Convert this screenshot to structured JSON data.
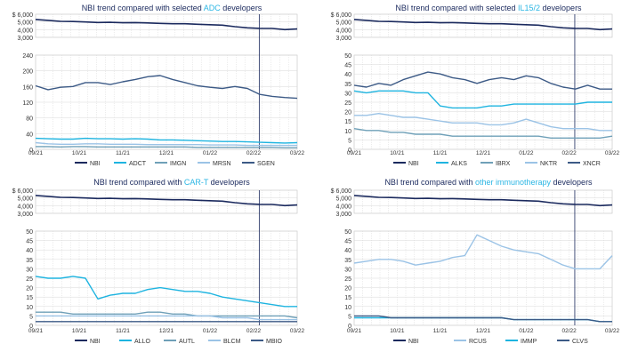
{
  "colors": {
    "nbi": "#1b2a5e",
    "dark_grey_blue": "#3c5a86",
    "cyan": "#1eb4e0",
    "light_blue": "#9bc3e6",
    "teal_grey": "#6fa0b8",
    "grid": "#d9d9d9",
    "highlight": "#2bb6e4"
  },
  "x_axis_labels": [
    "09/21",
    "10/21",
    "11/21",
    "12/21",
    "01/22",
    "02/22",
    "03/22"
  ],
  "chart_data": [
    {
      "type": "line",
      "title_prefix": "NBI trend compared with selected ",
      "title_highlight": "ADC",
      "title_suffix": " developers",
      "top_panel": {
        "series": "NBI",
        "yticks": [
          "$ 6,000",
          "5,000",
          "4,000",
          "3,000"
        ],
        "ylim": [
          3000,
          6000
        ]
      },
      "bottom_panel": {
        "yticks": [
          "240",
          "200",
          "160",
          "120",
          "80",
          "40",
          "0"
        ],
        "ylim": [
          0,
          240
        ]
      },
      "series": [
        {
          "name": "NBI",
          "color": "nbi",
          "values": [
            5320,
            5200,
            5080,
            5050,
            5000,
            4930,
            4950,
            4890,
            4920,
            4870,
            4810,
            4760,
            4760,
            4700,
            4640,
            4580,
            4380,
            4240,
            4170,
            4150,
            4000,
            4080
          ]
        },
        {
          "name": "ADCT",
          "color": "cyan",
          "values": [
            28,
            27,
            26,
            26,
            28,
            27,
            27,
            26,
            27,
            26,
            24,
            24,
            23,
            22,
            21,
            20,
            20,
            19,
            18,
            17,
            16,
            17
          ]
        },
        {
          "name": "IMGN",
          "color": "teal_grey",
          "values": [
            7,
            7,
            6,
            7,
            7,
            6,
            6,
            6,
            6,
            6,
            6,
            6,
            6,
            5,
            5,
            5,
            5,
            5,
            5,
            5,
            4,
            4
          ]
        },
        {
          "name": "MRSN",
          "color": "light_blue",
          "values": [
            17,
            14,
            13,
            13,
            14,
            14,
            13,
            13,
            13,
            12,
            12,
            12,
            12,
            12,
            11,
            11,
            11,
            10,
            10,
            10,
            10,
            10
          ]
        },
        {
          "name": "SGEN",
          "color": "dark_grey_blue",
          "values": [
            162,
            152,
            158,
            160,
            170,
            170,
            165,
            172,
            178,
            185,
            188,
            178,
            170,
            162,
            158,
            155,
            160,
            155,
            140,
            135,
            132,
            130
          ]
        }
      ]
    },
    {
      "type": "line",
      "title_prefix": "NBI trend compared with selected ",
      "title_highlight": "IL15/2",
      "title_suffix": " developers",
      "top_panel": {
        "series": "NBI",
        "yticks": [
          "$ 6,000",
          "5,000",
          "4,000",
          "3,000"
        ],
        "ylim": [
          3000,
          6000
        ]
      },
      "bottom_panel": {
        "yticks": [
          "50",
          "45",
          "40",
          "35",
          "30",
          "25",
          "20",
          "15",
          "10",
          "5",
          "0"
        ],
        "ylim": [
          0,
          50
        ]
      },
      "series": [
        {
          "name": "NBI",
          "color": "nbi",
          "values": [
            5320,
            5200,
            5080,
            5050,
            5000,
            4930,
            4950,
            4890,
            4920,
            4870,
            4810,
            4760,
            4760,
            4700,
            4640,
            4580,
            4380,
            4240,
            4170,
            4150,
            4000,
            4080
          ]
        },
        {
          "name": "ALKS",
          "color": "cyan",
          "values": [
            31,
            30,
            31,
            31,
            31,
            30,
            30,
            23,
            22,
            22,
            22,
            23,
            23,
            24,
            24,
            24,
            24,
            24,
            24,
            25,
            25,
            25
          ]
        },
        {
          "name": "IBRX",
          "color": "teal_grey",
          "values": [
            11,
            10,
            10,
            9,
            9,
            8,
            8,
            8,
            7,
            7,
            7,
            7,
            7,
            7,
            7,
            7,
            6,
            6,
            6,
            6,
            6,
            7
          ]
        },
        {
          "name": "NKTR",
          "color": "light_blue",
          "values": [
            18,
            18,
            19,
            18,
            17,
            17,
            16,
            15,
            14,
            14,
            14,
            13,
            13,
            14,
            16,
            14,
            12,
            11,
            11,
            11,
            10,
            10
          ]
        },
        {
          "name": "XNCR",
          "color": "dark_grey_blue",
          "values": [
            34,
            33,
            35,
            34,
            37,
            39,
            41,
            40,
            38,
            37,
            35,
            37,
            38,
            37,
            39,
            38,
            35,
            33,
            32,
            34,
            32,
            32
          ]
        }
      ]
    },
    {
      "type": "line",
      "title_prefix": "NBI trend compared with ",
      "title_highlight": "CAR-T",
      "title_suffix": " developers",
      "top_panel": {
        "series": "NBI",
        "yticks": [
          "$ 6,000",
          "5,000",
          "4,000",
          "3,000"
        ],
        "ylim": [
          3000,
          6000
        ]
      },
      "bottom_panel": {
        "yticks": [
          "50",
          "45",
          "40",
          "35",
          "30",
          "25",
          "20",
          "15",
          "10",
          "5",
          "0"
        ],
        "ylim": [
          0,
          50
        ]
      },
      "series": [
        {
          "name": "NBI",
          "color": "nbi",
          "values": [
            5320,
            5200,
            5080,
            5050,
            5000,
            4930,
            4950,
            4890,
            4920,
            4870,
            4810,
            4760,
            4760,
            4700,
            4640,
            4580,
            4380,
            4240,
            4170,
            4150,
            4000,
            4080
          ]
        },
        {
          "name": "ALLO",
          "color": "cyan",
          "values": [
            26,
            25,
            25,
            26,
            25,
            14,
            16,
            17,
            17,
            19,
            20,
            19,
            18,
            18,
            17,
            15,
            14,
            13,
            12,
            11,
            10,
            10
          ]
        },
        {
          "name": "AUTL",
          "color": "teal_grey",
          "values": [
            7,
            7,
            7,
            6,
            6,
            6,
            6,
            6,
            6,
            7,
            7,
            6,
            6,
            5,
            5,
            5,
            5,
            5,
            5,
            5,
            5,
            4
          ]
        },
        {
          "name": "BLCM",
          "color": "light_blue",
          "values": [
            5,
            5,
            5,
            5,
            5,
            5,
            5,
            5,
            5,
            5,
            5,
            5,
            5,
            5,
            5,
            4,
            4,
            4,
            3,
            3,
            3,
            3
          ]
        },
        {
          "name": "MBIO",
          "color": "dark_grey_blue",
          "values": [
            2,
            2,
            2,
            2,
            2,
            2,
            2,
            2,
            2,
            2,
            2,
            2,
            2,
            2,
            2,
            2,
            2,
            2,
            2,
            2,
            2,
            2
          ]
        }
      ]
    },
    {
      "type": "line",
      "title_prefix": "NBI trend compared with ",
      "title_highlight": "other immunotherapy",
      "title_suffix": " developers",
      "top_panel": {
        "series": "NBI",
        "yticks": [
          "$ 6,000",
          "5,000",
          "4,000",
          "3,000"
        ],
        "ylim": [
          3000,
          6000
        ]
      },
      "bottom_panel": {
        "yticks": [
          "50",
          "45",
          "40",
          "35",
          "30",
          "25",
          "20",
          "15",
          "10",
          "5",
          "0"
        ],
        "ylim": [
          0,
          50
        ]
      },
      "series": [
        {
          "name": "NBI",
          "color": "nbi",
          "values": [
            5320,
            5200,
            5080,
            5050,
            5000,
            4930,
            4950,
            4890,
            4920,
            4870,
            4810,
            4760,
            4760,
            4700,
            4640,
            4580,
            4380,
            4240,
            4170,
            4150,
            4000,
            4080
          ]
        },
        {
          "name": "RCUS",
          "color": "light_blue",
          "values": [
            33,
            34,
            35,
            35,
            34,
            32,
            33,
            34,
            36,
            37,
            48,
            45,
            42,
            40,
            39,
            38,
            35,
            32,
            30,
            30,
            30,
            37
          ]
        },
        {
          "name": "IMMP",
          "color": "cyan",
          "values": [
            4,
            4,
            4,
            4,
            4,
            4,
            4,
            4,
            4,
            4,
            4,
            4,
            4,
            3,
            3,
            3,
            3,
            3,
            3,
            3,
            2,
            2
          ]
        },
        {
          "name": "CLVS",
          "color": "dark_grey_blue",
          "values": [
            5,
            5,
            5,
            4,
            4,
            4,
            4,
            4,
            4,
            4,
            4,
            4,
            4,
            3,
            3,
            3,
            3,
            3,
            3,
            3,
            2,
            2
          ]
        }
      ]
    }
  ]
}
